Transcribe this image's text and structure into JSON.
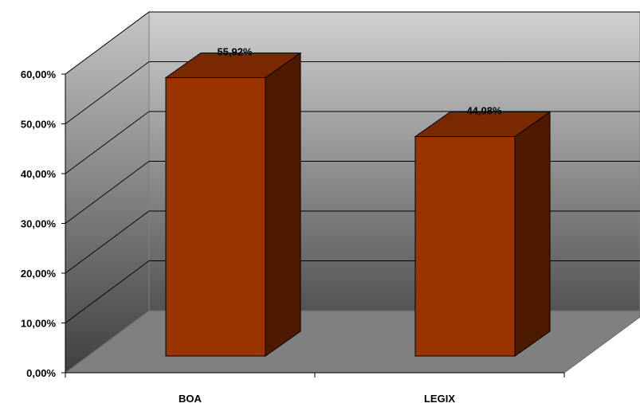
{
  "chart_data": {
    "type": "bar",
    "categories": [
      "BOA",
      "LEGIX"
    ],
    "values": [
      55.92,
      44.08
    ],
    "data_labels": [
      "55,92%",
      "44,08%"
    ],
    "y_ticks": [
      "0,00%",
      "10,00%",
      "20,00%",
      "30,00%",
      "40,00%",
      "50,00%",
      "60,00%"
    ],
    "ylim": [
      0,
      60
    ],
    "grid": true,
    "legend": "none",
    "colors": {
      "bar_front": "#993300",
      "bar_top": "#7a2800",
      "bar_side": "#4d1a00",
      "wall_top": "#c8c8c8",
      "wall_bottom": "#4a4a4a",
      "floor": "#808080"
    }
  }
}
